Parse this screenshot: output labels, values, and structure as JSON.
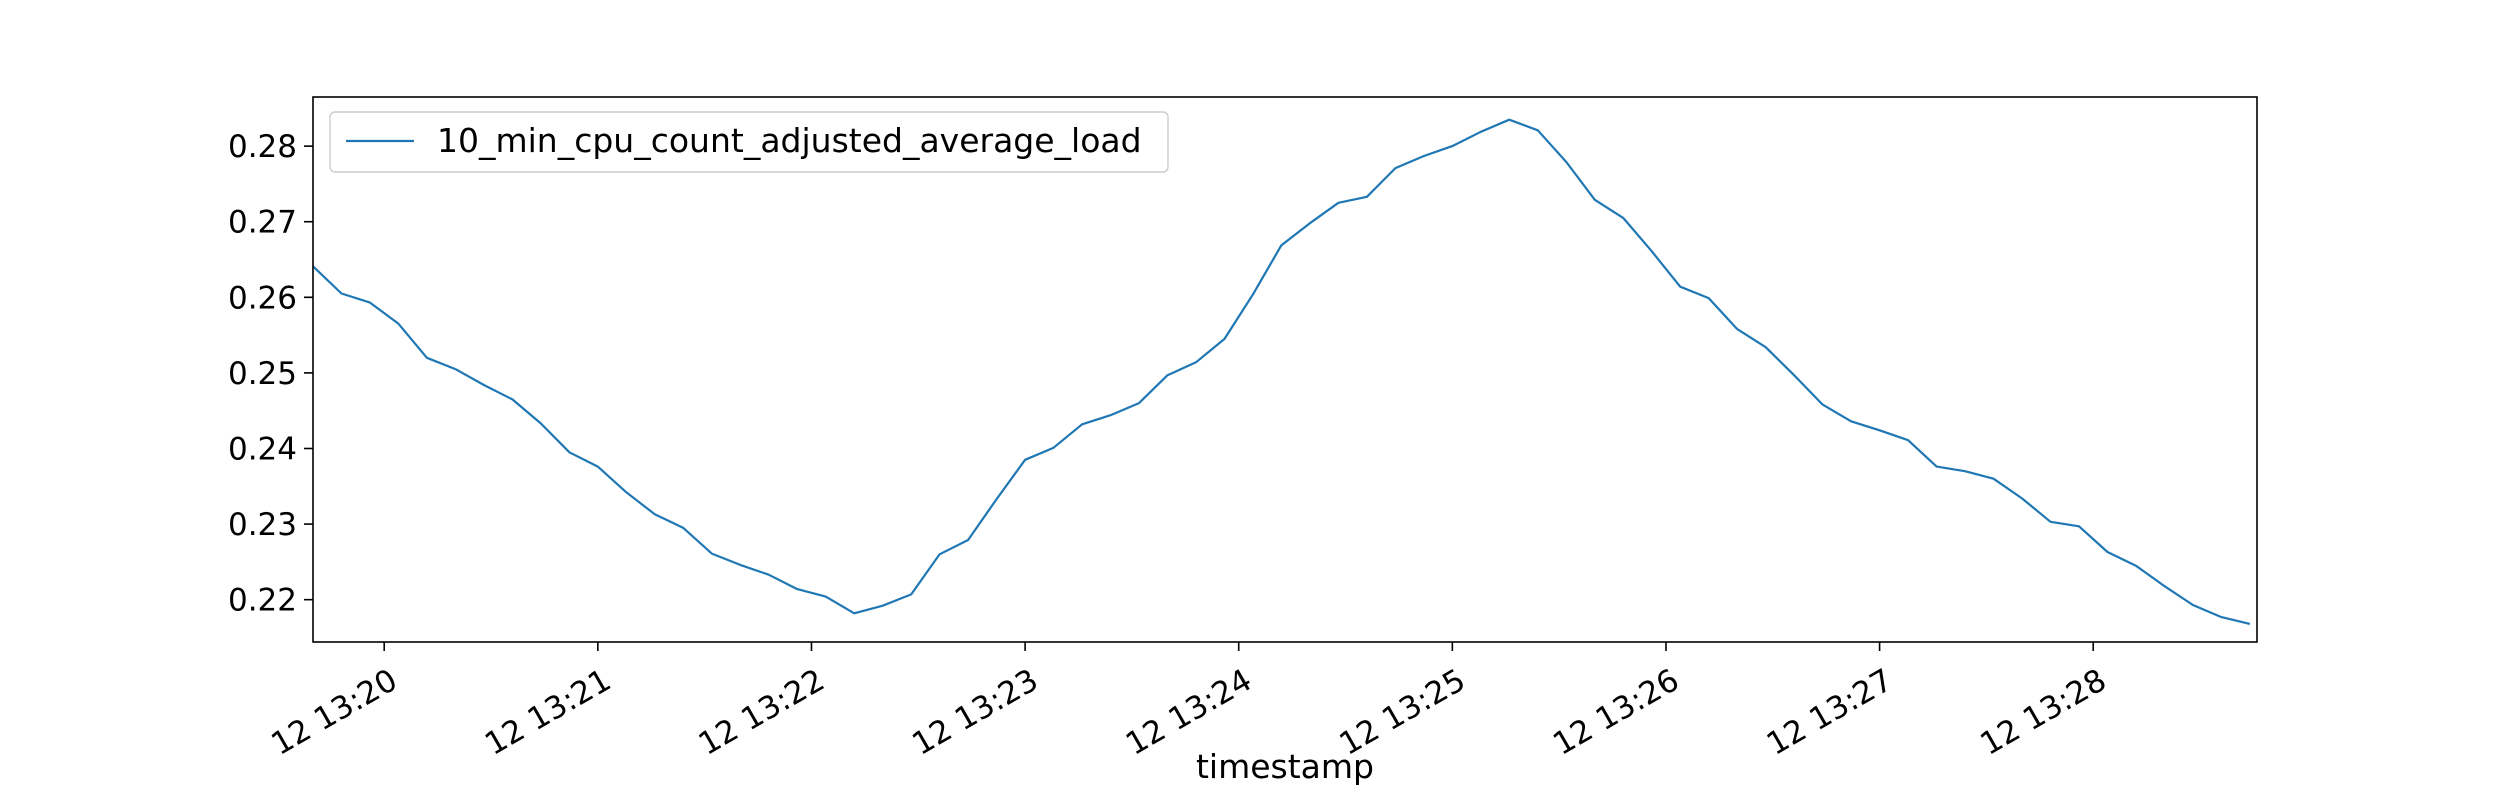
{
  "chart_data": {
    "type": "line",
    "title": "",
    "xlabel": "timestamp",
    "ylabel": "",
    "x_unit": "time",
    "x_tick_labels": [
      "12 13:20",
      "12 13:21",
      "12 13:22",
      "12 13:23",
      "12 13:24",
      "12 13:25",
      "12 13:26",
      "12 13:27",
      "12 13:28"
    ],
    "x_ticks": [
      "13:20:00",
      "13:21:00",
      "13:22:00",
      "13:23:00",
      "13:24:00",
      "13:25:00",
      "13:26:00",
      "13:27:00",
      "13:28:00"
    ],
    "xlim": [
      "13:19:40",
      "13:28:46"
    ],
    "ylim": [
      0.2144,
      0.2865
    ],
    "yticks": [
      0.22,
      0.23,
      0.24,
      0.25,
      0.26,
      0.27,
      0.28
    ],
    "ytick_labels": [
      "0.22",
      "0.23",
      "0.24",
      "0.25",
      "0.26",
      "0.27",
      "0.28"
    ],
    "grid": false,
    "legend": {
      "position": "upper-left",
      "entries": [
        "10_min_cpu_count_adjusted_average_load"
      ]
    },
    "series": [
      {
        "name": "10_min_cpu_count_adjusted_average_load",
        "color": "#1f77b4",
        "x": [
          "13:19:40",
          "13:19:48",
          "13:19:56",
          "13:20:04",
          "13:20:12",
          "13:20:20",
          "13:20:28",
          "13:20:36",
          "13:20:44",
          "13:20:52",
          "13:21:00",
          "13:21:08",
          "13:21:16",
          "13:21:24",
          "13:21:32",
          "13:21:40",
          "13:21:48",
          "13:21:56",
          "13:22:04",
          "13:22:12",
          "13:22:20",
          "13:22:28",
          "13:22:36",
          "13:22:44",
          "13:22:52",
          "13:23:00",
          "13:23:08",
          "13:23:16",
          "13:23:24",
          "13:23:32",
          "13:23:40",
          "13:23:48",
          "13:23:56",
          "13:24:04",
          "13:24:12",
          "13:24:20",
          "13:24:28",
          "13:24:36",
          "13:24:44",
          "13:24:52",
          "13:25:00",
          "13:25:08",
          "13:25:16",
          "13:25:24",
          "13:25:32",
          "13:25:40",
          "13:25:48",
          "13:25:56",
          "13:26:04",
          "13:26:12",
          "13:26:20",
          "13:26:28",
          "13:26:36",
          "13:26:44",
          "13:26:52",
          "13:27:00",
          "13:27:08",
          "13:27:16",
          "13:27:24",
          "13:27:32",
          "13:27:40",
          "13:27:48",
          "13:27:56",
          "13:28:04",
          "13:28:12",
          "13:28:20",
          "13:28:28",
          "13:28:36",
          "13:28:44"
        ],
        "y": [
          0.2641,
          0.2605,
          0.2593,
          0.2565,
          0.252,
          0.2505,
          0.2484,
          0.2465,
          0.2433,
          0.2395,
          0.2376,
          0.2342,
          0.2313,
          0.2295,
          0.2261,
          0.2246,
          0.2233,
          0.2214,
          0.2204,
          0.2182,
          0.2192,
          0.2207,
          0.226,
          0.2279,
          0.2333,
          0.2385,
          0.2401,
          0.2432,
          0.2444,
          0.246,
          0.2497,
          0.2514,
          0.2545,
          0.2604,
          0.2669,
          0.2698,
          0.2725,
          0.2733,
          0.2771,
          0.2787,
          0.28,
          0.2819,
          0.2835,
          0.2821,
          0.2779,
          0.2729,
          0.2705,
          0.2661,
          0.2614,
          0.2599,
          0.2558,
          0.2534,
          0.2497,
          0.2458,
          0.2436,
          0.2424,
          0.2411,
          0.2376,
          0.237,
          0.236,
          0.2334,
          0.2303,
          0.2297,
          0.2263,
          0.2245,
          0.2218,
          0.2193,
          0.2177,
          0.2168
        ]
      }
    ]
  }
}
